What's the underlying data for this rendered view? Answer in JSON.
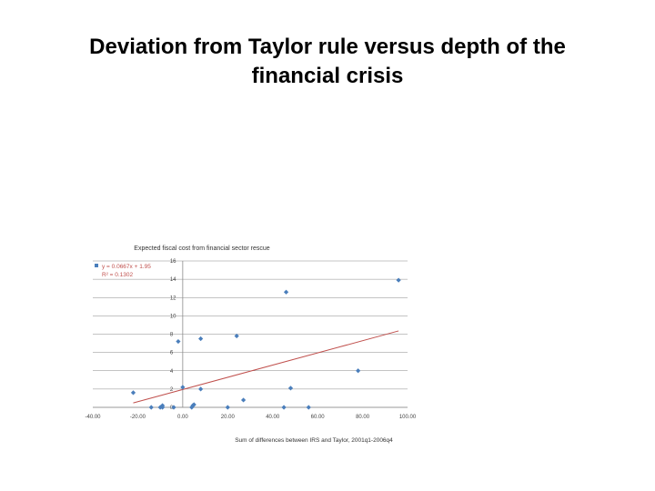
{
  "slide": {
    "title_line1": "Deviation from Taylor rule versus depth of the",
    "title_line2": "financial crisis"
  },
  "chart_data": {
    "type": "scatter",
    "title": "Expected fiscal cost from financial sector rescue",
    "xlabel": "Sum of differences between IRS and Taylor, 2001q1-2006q4",
    "ylabel": "",
    "xlim": [
      -40,
      100
    ],
    "ylim": [
      0,
      16
    ],
    "x_ticks": [
      "-40.00",
      "-20.00",
      "0.00",
      "20.00",
      "40.00",
      "60.00",
      "80.00",
      "100.00"
    ],
    "y_ticks": [
      "0",
      "2",
      "4",
      "6",
      "8",
      "10",
      "12",
      "14",
      "16"
    ],
    "grid": true,
    "legend": "none",
    "series": [
      {
        "marker_color": "#4a7ebb",
        "points": [
          {
            "x": -22,
            "y": 1.6
          },
          {
            "x": -14,
            "y": 0
          },
          {
            "x": -10,
            "y": 0
          },
          {
            "x": -9,
            "y": 0.2
          },
          {
            "x": -9,
            "y": 0
          },
          {
            "x": -4,
            "y": 0
          },
          {
            "x": -2,
            "y": 7.2
          },
          {
            "x": 0,
            "y": 2.2
          },
          {
            "x": 4,
            "y": 0
          },
          {
            "x": 4.5,
            "y": 0.2
          },
          {
            "x": 5,
            "y": 0.3
          },
          {
            "x": 8,
            "y": 7.5
          },
          {
            "x": 8,
            "y": 2
          },
          {
            "x": 20,
            "y": 0
          },
          {
            "x": 24,
            "y": 7.8
          },
          {
            "x": 27,
            "y": 0.8
          },
          {
            "x": 45,
            "y": 0
          },
          {
            "x": 46,
            "y": 12.6
          },
          {
            "x": 48,
            "y": 2.1
          },
          {
            "x": 56,
            "y": 0
          },
          {
            "x": 78,
            "y": 4
          },
          {
            "x": 96,
            "y": 13.9
          }
        ]
      }
    ],
    "trendline": {
      "equation": "y = 0.0667x + 1.95",
      "r_squared": "R² = 0.1302",
      "slope": 0.0667,
      "intercept": 1.95,
      "x_range": [
        -22,
        96
      ],
      "color": "#c0504d"
    }
  }
}
